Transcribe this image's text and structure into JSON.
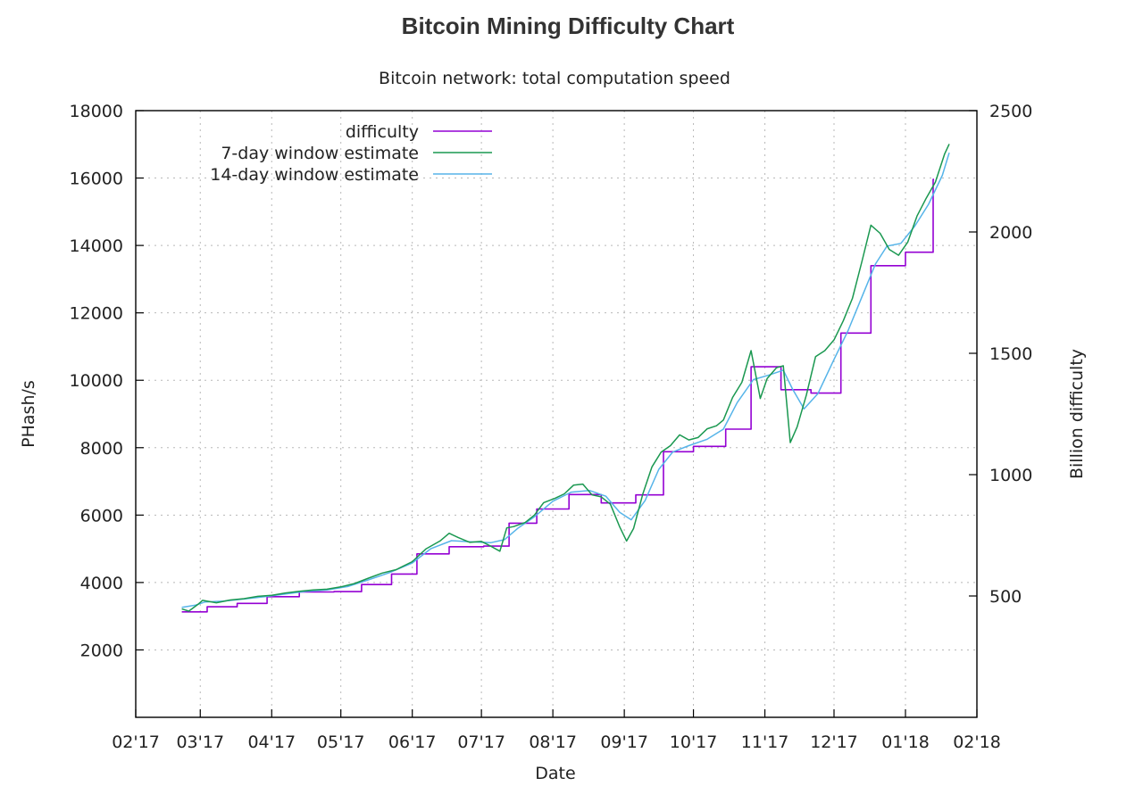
{
  "page": {
    "title": "Bitcoin Mining Difficulty Chart"
  },
  "chart_data": {
    "type": "line",
    "title": "Bitcoin network: total computation speed",
    "xlabel": "Date",
    "ylabel": "PHash/s",
    "y2label": "Billion difficulty",
    "x_axis": {
      "type": "date",
      "min": "2017-02-01",
      "max": "2018-02-01",
      "ticks": [
        {
          "date": "2017-02-01",
          "label": "02'17"
        },
        {
          "date": "2017-03-01",
          "label": "03'17"
        },
        {
          "date": "2017-04-01",
          "label": "04'17"
        },
        {
          "date": "2017-05-01",
          "label": "05'17"
        },
        {
          "date": "2017-06-01",
          "label": "06'17"
        },
        {
          "date": "2017-07-01",
          "label": "07'17"
        },
        {
          "date": "2017-08-01",
          "label": "08'17"
        },
        {
          "date": "2017-09-01",
          "label": "09'17"
        },
        {
          "date": "2017-10-01",
          "label": "10'17"
        },
        {
          "date": "2017-11-01",
          "label": "11'17"
        },
        {
          "date": "2017-12-01",
          "label": "12'17"
        },
        {
          "date": "2018-01-01",
          "label": "01'18"
        },
        {
          "date": "2018-02-01",
          "label": "02'18"
        }
      ]
    },
    "ylim": [
      0,
      18000
    ],
    "yticks": [
      2000,
      4000,
      6000,
      8000,
      10000,
      12000,
      14000,
      16000,
      18000
    ],
    "y2lim": [
      0,
      2500
    ],
    "y2ticks": [
      500,
      1000,
      1500,
      2000,
      2500
    ],
    "grid": true,
    "legend": "top-left",
    "series": [
      {
        "name": "difficulty",
        "color": "#9400d3",
        "style": "step",
        "points": [
          [
            "2017-02-21",
            3130
          ],
          [
            "2017-03-04",
            3280
          ],
          [
            "2017-03-17",
            3380
          ],
          [
            "2017-03-30",
            3580
          ],
          [
            "2017-04-13",
            3720
          ],
          [
            "2017-04-28",
            3730
          ],
          [
            "2017-05-10",
            3940
          ],
          [
            "2017-05-23",
            4250
          ],
          [
            "2017-06-03",
            4850
          ],
          [
            "2017-06-17",
            5060
          ],
          [
            "2017-07-02",
            5080
          ],
          [
            "2017-07-13",
            5760
          ],
          [
            "2017-07-25",
            6180
          ],
          [
            "2017-08-08",
            6610
          ],
          [
            "2017-08-22",
            6360
          ],
          [
            "2017-09-06",
            6600
          ],
          [
            "2017-09-18",
            7880
          ],
          [
            "2017-10-01",
            8040
          ],
          [
            "2017-10-15",
            8550
          ],
          [
            "2017-10-26",
            10400
          ],
          [
            "2017-11-08",
            9720
          ],
          [
            "2017-11-21",
            9620
          ],
          [
            "2017-12-04",
            11400
          ],
          [
            "2017-12-17",
            13400
          ],
          [
            "2018-01-01",
            13800
          ],
          [
            "2018-01-13",
            15960
          ]
        ]
      },
      {
        "name": "7-day window estimate",
        "color": "#1a9850",
        "style": "line",
        "points": [
          [
            "2017-02-21",
            3220
          ],
          [
            "2017-02-24",
            3150
          ],
          [
            "2017-02-28",
            3350
          ],
          [
            "2017-03-02",
            3470
          ],
          [
            "2017-03-08",
            3400
          ],
          [
            "2017-03-14",
            3480
          ],
          [
            "2017-03-20",
            3520
          ],
          [
            "2017-03-26",
            3590
          ],
          [
            "2017-04-01",
            3620
          ],
          [
            "2017-04-07",
            3690
          ],
          [
            "2017-04-13",
            3740
          ],
          [
            "2017-04-19",
            3780
          ],
          [
            "2017-04-25",
            3800
          ],
          [
            "2017-05-01",
            3870
          ],
          [
            "2017-05-07",
            3970
          ],
          [
            "2017-05-13",
            4130
          ],
          [
            "2017-05-19",
            4280
          ],
          [
            "2017-05-25",
            4380
          ],
          [
            "2017-06-01",
            4620
          ],
          [
            "2017-06-07",
            5000
          ],
          [
            "2017-06-13",
            5230
          ],
          [
            "2017-06-17",
            5460
          ],
          [
            "2017-06-21",
            5330
          ],
          [
            "2017-06-26",
            5190
          ],
          [
            "2017-07-01",
            5220
          ],
          [
            "2017-07-05",
            5080
          ],
          [
            "2017-07-09",
            4930
          ],
          [
            "2017-07-12",
            5620
          ],
          [
            "2017-07-15",
            5660
          ],
          [
            "2017-07-20",
            5780
          ],
          [
            "2017-07-24",
            6000
          ],
          [
            "2017-07-28",
            6370
          ],
          [
            "2017-08-02",
            6500
          ],
          [
            "2017-08-06",
            6630
          ],
          [
            "2017-08-10",
            6890
          ],
          [
            "2017-08-14",
            6920
          ],
          [
            "2017-08-18",
            6600
          ],
          [
            "2017-08-22",
            6540
          ],
          [
            "2017-08-26",
            6320
          ],
          [
            "2017-08-30",
            5650
          ],
          [
            "2017-09-02",
            5230
          ],
          [
            "2017-09-05",
            5600
          ],
          [
            "2017-09-09",
            6620
          ],
          [
            "2017-09-13",
            7430
          ],
          [
            "2017-09-17",
            7870
          ],
          [
            "2017-09-21",
            8060
          ],
          [
            "2017-09-25",
            8380
          ],
          [
            "2017-09-29",
            8230
          ],
          [
            "2017-10-03",
            8300
          ],
          [
            "2017-10-07",
            8560
          ],
          [
            "2017-10-11",
            8650
          ],
          [
            "2017-10-14",
            8820
          ],
          [
            "2017-10-18",
            9490
          ],
          [
            "2017-10-22",
            9940
          ],
          [
            "2017-10-26",
            10880
          ],
          [
            "2017-10-30",
            9460
          ],
          [
            "2017-11-02",
            10050
          ],
          [
            "2017-11-06",
            10370
          ],
          [
            "2017-11-09",
            10430
          ],
          [
            "2017-11-12",
            8150
          ],
          [
            "2017-11-15",
            8620
          ],
          [
            "2017-11-19",
            9560
          ],
          [
            "2017-11-23",
            10700
          ],
          [
            "2017-11-27",
            10880
          ],
          [
            "2017-12-01",
            11200
          ],
          [
            "2017-12-05",
            11760
          ],
          [
            "2017-12-09",
            12430
          ],
          [
            "2017-12-13",
            13500
          ],
          [
            "2017-12-17",
            14600
          ],
          [
            "2017-12-21",
            14360
          ],
          [
            "2017-12-25",
            13880
          ],
          [
            "2017-12-29",
            13710
          ],
          [
            "2018-01-02",
            14100
          ],
          [
            "2018-01-06",
            14870
          ],
          [
            "2018-01-10",
            15400
          ],
          [
            "2018-01-14",
            15880
          ],
          [
            "2018-01-18",
            16720
          ],
          [
            "2018-01-20",
            17010
          ]
        ]
      },
      {
        "name": "14-day window estimate",
        "color": "#56b4e9",
        "style": "line",
        "points": [
          [
            "2017-02-21",
            3260
          ],
          [
            "2017-02-27",
            3330
          ],
          [
            "2017-03-03",
            3420
          ],
          [
            "2017-03-11",
            3450
          ],
          [
            "2017-03-20",
            3510
          ],
          [
            "2017-03-29",
            3580
          ],
          [
            "2017-04-07",
            3660
          ],
          [
            "2017-04-16",
            3740
          ],
          [
            "2017-04-25",
            3780
          ],
          [
            "2017-05-04",
            3880
          ],
          [
            "2017-05-13",
            4080
          ],
          [
            "2017-05-22",
            4290
          ],
          [
            "2017-06-01",
            4580
          ],
          [
            "2017-06-09",
            5000
          ],
          [
            "2017-06-18",
            5240
          ],
          [
            "2017-06-26",
            5210
          ],
          [
            "2017-07-05",
            5180
          ],
          [
            "2017-07-11",
            5270
          ],
          [
            "2017-07-17",
            5620
          ],
          [
            "2017-07-24",
            5950
          ],
          [
            "2017-08-01",
            6410
          ],
          [
            "2017-08-09",
            6680
          ],
          [
            "2017-08-17",
            6730
          ],
          [
            "2017-08-24",
            6560
          ],
          [
            "2017-08-30",
            6080
          ],
          [
            "2017-09-04",
            5860
          ],
          [
            "2017-09-10",
            6430
          ],
          [
            "2017-09-16",
            7360
          ],
          [
            "2017-09-22",
            7870
          ],
          [
            "2017-09-29",
            8060
          ],
          [
            "2017-10-07",
            8250
          ],
          [
            "2017-10-14",
            8550
          ],
          [
            "2017-10-20",
            9340
          ],
          [
            "2017-10-27",
            10020
          ],
          [
            "2017-11-03",
            10160
          ],
          [
            "2017-11-09",
            10300
          ],
          [
            "2017-11-13",
            9740
          ],
          [
            "2017-11-18",
            9150
          ],
          [
            "2017-11-24",
            9600
          ],
          [
            "2017-12-01",
            10620
          ],
          [
            "2017-12-07",
            11460
          ],
          [
            "2017-12-13",
            12460
          ],
          [
            "2017-12-19",
            13450
          ],
          [
            "2017-12-24",
            13980
          ],
          [
            "2017-12-30",
            14060
          ],
          [
            "2018-01-05",
            14570
          ],
          [
            "2018-01-11",
            15220
          ],
          [
            "2018-01-17",
            16080
          ],
          [
            "2018-01-20",
            16750
          ]
        ]
      }
    ]
  }
}
